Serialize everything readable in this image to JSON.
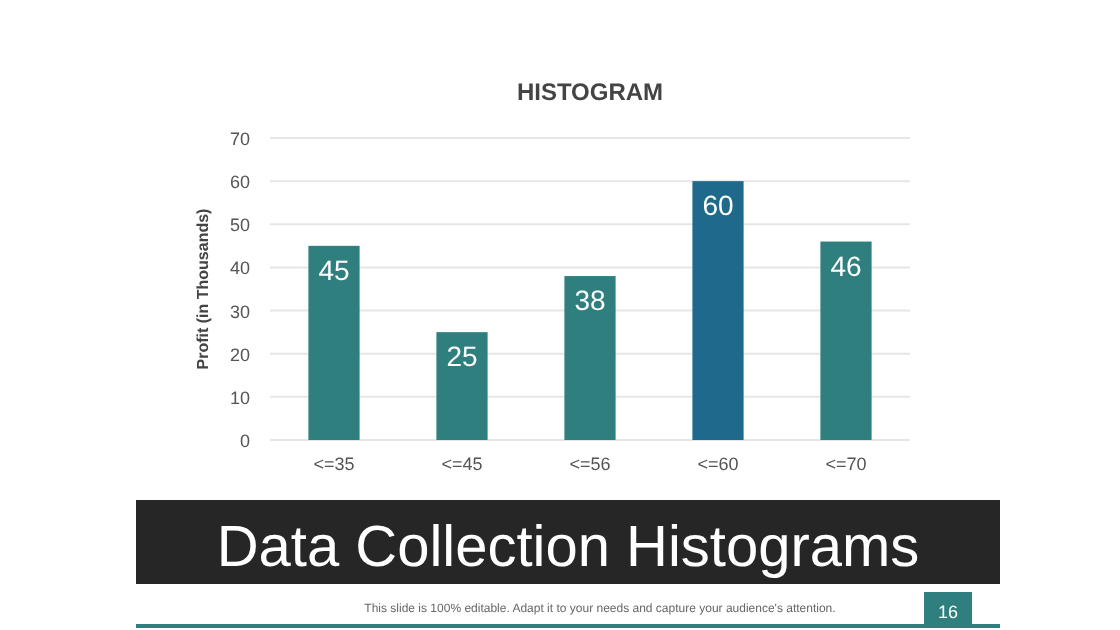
{
  "chart_data": {
    "type": "bar",
    "title": "HISTOGRAM",
    "ylabel": "Profit (in Thousands)",
    "categories": [
      "<=35",
      "<=45",
      "<=56",
      "<=60",
      "<=70"
    ],
    "values": [
      45,
      25,
      38,
      60,
      46
    ],
    "colors": [
      "#2f7f7f",
      "#2f7f7f",
      "#2f7f7f",
      "#1f6a8c",
      "#2f7f7f"
    ],
    "ylim": [
      0,
      70
    ],
    "yticks": [
      0,
      10,
      20,
      30,
      40,
      50,
      60,
      70
    ],
    "grid": "y",
    "data_labels": true,
    "annotations": [
      "Data Collection Histograms",
      "This slide is 100% editable. Adapt it to your needs and capture your audience's attention.",
      "16"
    ]
  }
}
